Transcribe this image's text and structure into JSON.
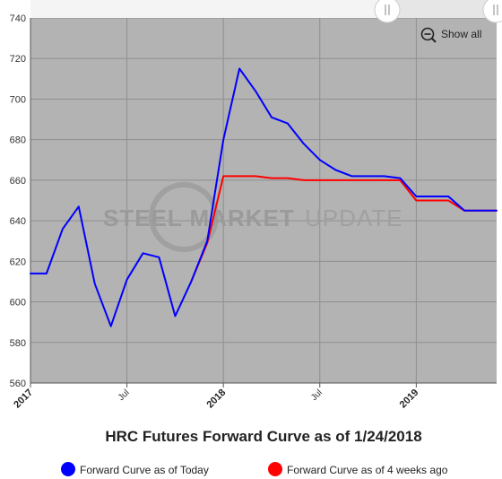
{
  "chart_data": {
    "type": "line",
    "title": "HRC Futures Forward Curve as of 1/24/2018",
    "xlabel": "",
    "ylabel": "",
    "ylim": [
      560,
      740
    ],
    "yticks": [
      560,
      580,
      600,
      620,
      640,
      660,
      680,
      700,
      720,
      740
    ],
    "xticks": [
      {
        "label": "2017",
        "date": "2017-01",
        "style": "year"
      },
      {
        "label": "Jul",
        "date": "2017-07",
        "style": "month"
      },
      {
        "label": "2018",
        "date": "2018-01",
        "style": "year"
      },
      {
        "label": "Jul",
        "date": "2018-07",
        "style": "month"
      },
      {
        "label": "2019",
        "date": "2019-01",
        "style": "year"
      }
    ],
    "xrange": [
      "2017-01",
      "2019-06"
    ],
    "grid": true,
    "legend_position": "bottom",
    "series": [
      {
        "name": "Forward Curve as of Today",
        "color": "#0000ff",
        "points": [
          {
            "x": "2017-01",
            "y": 614
          },
          {
            "x": "2017-02",
            "y": 614
          },
          {
            "x": "2017-03",
            "y": 636
          },
          {
            "x": "2017-04",
            "y": 647
          },
          {
            "x": "2017-05",
            "y": 609
          },
          {
            "x": "2017-06",
            "y": 588
          },
          {
            "x": "2017-07",
            "y": 611
          },
          {
            "x": "2017-08",
            "y": 624
          },
          {
            "x": "2017-09",
            "y": 622
          },
          {
            "x": "2017-10",
            "y": 593
          },
          {
            "x": "2017-11",
            "y": 610
          },
          {
            "x": "2017-12",
            "y": 630
          },
          {
            "x": "2018-01",
            "y": 680
          },
          {
            "x": "2018-02",
            "y": 715
          },
          {
            "x": "2018-03",
            "y": 704
          },
          {
            "x": "2018-04",
            "y": 691
          },
          {
            "x": "2018-05",
            "y": 688
          },
          {
            "x": "2018-06",
            "y": 678
          },
          {
            "x": "2018-07",
            "y": 670
          },
          {
            "x": "2018-08",
            "y": 665
          },
          {
            "x": "2018-09",
            "y": 662
          },
          {
            "x": "2018-10",
            "y": 662
          },
          {
            "x": "2018-11",
            "y": 662
          },
          {
            "x": "2018-12",
            "y": 661
          },
          {
            "x": "2019-01",
            "y": 652
          },
          {
            "x": "2019-02",
            "y": 652
          },
          {
            "x": "2019-03",
            "y": 652
          },
          {
            "x": "2019-04",
            "y": 645
          },
          {
            "x": "2019-05",
            "y": 645
          },
          {
            "x": "2019-06",
            "y": 645
          }
        ]
      },
      {
        "name": "Forward Curve as of 4 weeks ago",
        "color": "#ff0000",
        "points": [
          {
            "x": "2017-11",
            "y": 610
          },
          {
            "x": "2017-12",
            "y": 629
          },
          {
            "x": "2018-01",
            "y": 662
          },
          {
            "x": "2018-02",
            "y": 662
          },
          {
            "x": "2018-03",
            "y": 662
          },
          {
            "x": "2018-04",
            "y": 661
          },
          {
            "x": "2018-05",
            "y": 661
          },
          {
            "x": "2018-06",
            "y": 660
          },
          {
            "x": "2018-07",
            "y": 660
          },
          {
            "x": "2018-08",
            "y": 660
          },
          {
            "x": "2018-09",
            "y": 660
          },
          {
            "x": "2018-10",
            "y": 660
          },
          {
            "x": "2018-11",
            "y": 660
          },
          {
            "x": "2018-12",
            "y": 660
          },
          {
            "x": "2019-01",
            "y": 650
          },
          {
            "x": "2019-02",
            "y": 650
          },
          {
            "x": "2019-03",
            "y": 650
          },
          {
            "x": "2019-04",
            "y": 645
          },
          {
            "x": "2019-05",
            "y": 645
          },
          {
            "x": "2019-06",
            "y": 645
          }
        ]
      }
    ]
  },
  "toolbar": {
    "show_all_label": "Show all",
    "zoom_icon": "zoom-out-icon"
  },
  "watermark": {
    "bold_text": "STEEL MARKET",
    "light_text": "UPDATE"
  },
  "colors": {
    "plot_background": "#b3b3b3",
    "grid": "#8f8f8f",
    "today": "#0000ff",
    "four_weeks_ago": "#ff0000"
  }
}
